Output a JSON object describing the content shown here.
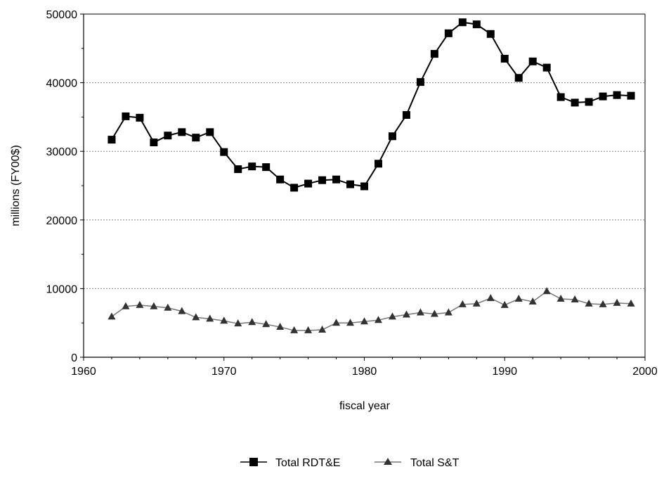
{
  "chart_data": {
    "type": "line",
    "xlabel": "fiscal year",
    "ylabel": "millions (FY00$)",
    "xlim": [
      1960,
      2000
    ],
    "ylim": [
      0,
      50000
    ],
    "x_ticks": [
      "1960",
      "1970",
      "1980",
      "1990",
      "2000"
    ],
    "y_ticks": [
      "0",
      "10000",
      "20000",
      "30000",
      "40000",
      "50000"
    ],
    "grid": "horizontal dotted",
    "legend_position": "bottom-center",
    "x": [
      1962,
      1963,
      1964,
      1965,
      1966,
      1967,
      1968,
      1969,
      1970,
      1971,
      1972,
      1973,
      1974,
      1975,
      1976,
      1977,
      1978,
      1979,
      1980,
      1981,
      1982,
      1983,
      1984,
      1985,
      1986,
      1987,
      1988,
      1989,
      1990,
      1991,
      1992,
      1993,
      1994,
      1995,
      1996,
      1997,
      1998,
      1999
    ],
    "series": [
      {
        "name": "Total RDT&E",
        "marker": "square",
        "color": "#000000",
        "values": [
          31700,
          35100,
          34900,
          31300,
          32300,
          32800,
          32000,
          32800,
          29900,
          27400,
          27800,
          27700,
          25900,
          24700,
          25300,
          25800,
          25900,
          25200,
          24900,
          28200,
          32200,
          35300,
          40100,
          44200,
          47200,
          48800,
          48500,
          47100,
          43500,
          40700,
          43100,
          42200,
          37900,
          37100,
          37200,
          38000,
          38200,
          38100
        ]
      },
      {
        "name": "Total S&T",
        "marker": "triangle",
        "color": "#333333",
        "line_color": "#777777",
        "values": [
          5900,
          7400,
          7600,
          7400,
          7200,
          6700,
          5800,
          5600,
          5300,
          4900,
          5100,
          4800,
          4400,
          3900,
          3900,
          4000,
          5000,
          5000,
          5200,
          5400,
          5900,
          6200,
          6500,
          6300,
          6500,
          7700,
          7800,
          8600,
          7600,
          8500,
          8100,
          9600,
          8500,
          8400,
          7800,
          7700,
          7900,
          7800
        ]
      }
    ]
  }
}
